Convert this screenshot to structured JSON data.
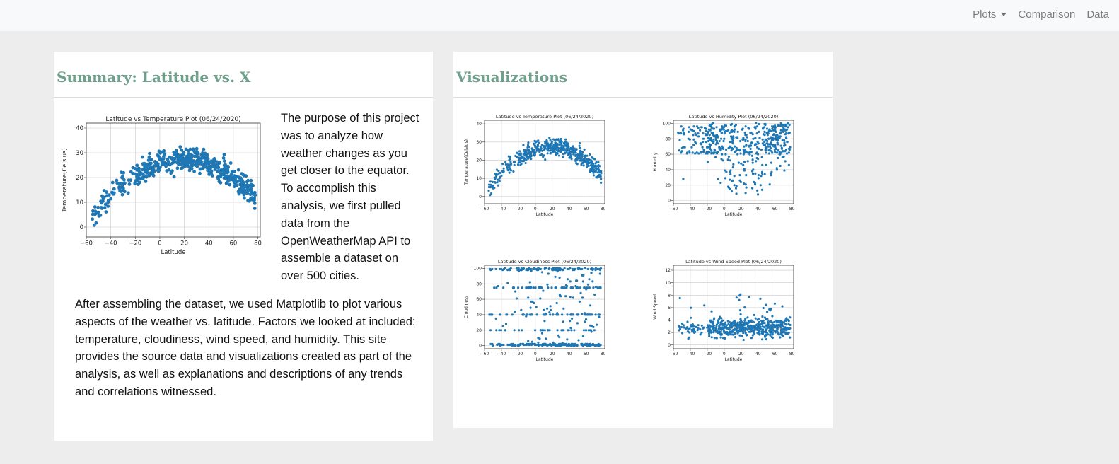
{
  "nav": {
    "plots_label": "Plots",
    "comparison_label": "Comparison",
    "data_label": "Data"
  },
  "summary": {
    "title": "Summary: Latitude vs. X",
    "purpose_text": "The purpose of this project was to analyze how weather changes as you get closer to the equator. To accomplish this analysis, we first pulled data from the OpenWeatherMap API to assemble a dataset on over 500 cities.",
    "after_text": "After assembling the dataset, we used Matplotlib to plot various aspects of the weather vs. latitude. Factors we looked at included: temperature, cloudiness, wind speed, and humidity. This site provides the source data and visualizations created as part of the analysis, as well as explanations and descriptions of any trends and correlations witnessed."
  },
  "visualizations": {
    "title": "Visualizations"
  },
  "colors": {
    "accent": "#6fa08c",
    "marker": "#1f77b4",
    "page_bg": "#ededed",
    "panel_bg": "#ffffff"
  },
  "chart_data": [
    {
      "id": "summary-temp",
      "type": "scatter",
      "title": "Latitude vs Temperature Plot (06/24/2020)",
      "xlabel": "Latitude",
      "ylabel": "Temperature(Celsius)",
      "xlim": [
        -60,
        82
      ],
      "ylim": [
        -4,
        42
      ],
      "xticks": [
        -60,
        -40,
        -20,
        0,
        20,
        40,
        60,
        80
      ],
      "yticks": [
        0,
        10,
        20,
        30,
        40
      ],
      "grid": true,
      "kind": "temp",
      "seed": 11
    },
    {
      "id": "viz-temp",
      "type": "scatter",
      "title": "Latitude vs Temperature Plot (06/24/2020)",
      "xlabel": "Latitude",
      "ylabel": "Temperature(Celsius)",
      "xlim": [
        -60,
        82
      ],
      "ylim": [
        -4,
        42
      ],
      "xticks": [
        -60,
        -40,
        -20,
        0,
        20,
        40,
        60,
        80
      ],
      "yticks": [
        0,
        10,
        20,
        30,
        40
      ],
      "grid": true,
      "kind": "temp",
      "seed": 11
    },
    {
      "id": "viz-humidity",
      "type": "scatter",
      "title": "Latitude vs Humidity Plot (06/24/2020)",
      "xlabel": "Latitude",
      "ylabel": "Humidity",
      "xlim": [
        -60,
        82
      ],
      "ylim": [
        -4,
        104
      ],
      "xticks": [
        -60,
        -40,
        -20,
        0,
        20,
        40,
        60,
        80
      ],
      "yticks": [
        0,
        20,
        40,
        60,
        80,
        100
      ],
      "grid": true,
      "kind": "humidity",
      "seed": 23
    },
    {
      "id": "viz-cloudiness",
      "type": "scatter",
      "title": "Latitude vs Cloudiness Plot (06/24/2020)",
      "xlabel": "Latitude",
      "ylabel": "Cloudiness",
      "xlim": [
        -60,
        82
      ],
      "ylim": [
        -4,
        104
      ],
      "xticks": [
        -60,
        -40,
        -20,
        0,
        20,
        40,
        60,
        80
      ],
      "yticks": [
        0,
        20,
        40,
        60,
        80,
        100
      ],
      "grid": true,
      "kind": "cloud",
      "seed": 37
    },
    {
      "id": "viz-wind",
      "type": "scatter",
      "title": "Latitude vs Wind Speed Plot (06/24/2020)",
      "xlabel": "Latitude",
      "ylabel": "Wind Speed",
      "xlim": [
        -60,
        82
      ],
      "ylim": [
        -0.6,
        12.8
      ],
      "xticks": [
        -60,
        -40,
        -20,
        0,
        20,
        40,
        60,
        80
      ],
      "yticks": [
        0,
        2,
        4,
        6,
        8,
        10,
        12
      ],
      "grid": true,
      "kind": "wind",
      "seed": 51
    }
  ]
}
